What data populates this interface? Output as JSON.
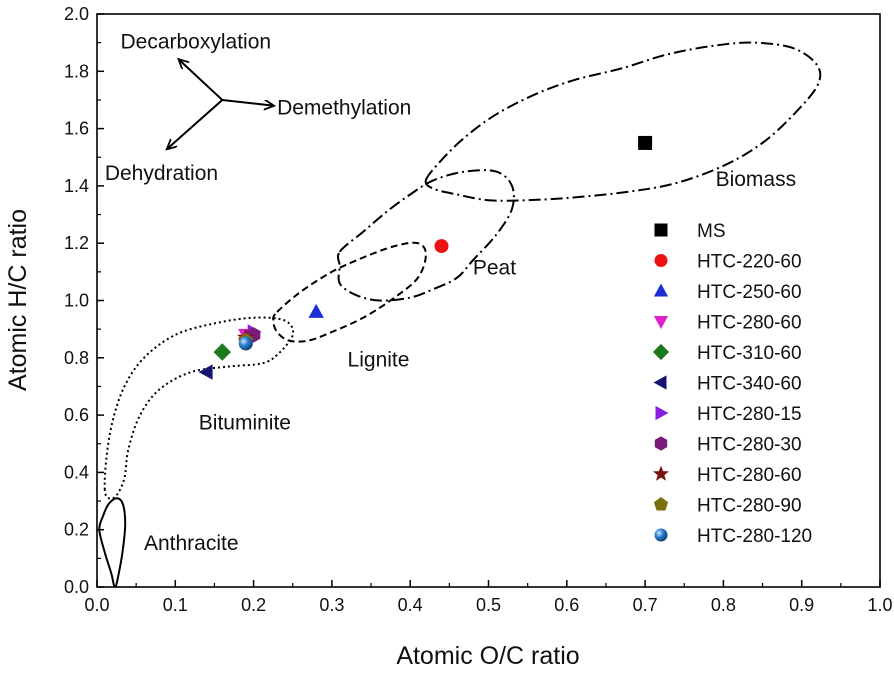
{
  "chart_data": {
    "type": "scatter",
    "xlabel": "Atomic O/C ratio",
    "ylabel": "Atomic H/C ratio",
    "xlim": [
      0.0,
      1.0
    ],
    "ylim": [
      0.0,
      2.0
    ],
    "xticks": [
      "0.0",
      "0.1",
      "0.2",
      "0.3",
      "0.4",
      "0.5",
      "0.6",
      "0.7",
      "0.8",
      "0.9",
      "1.0"
    ],
    "yticks": [
      "0.0",
      "0.2",
      "0.4",
      "0.6",
      "0.8",
      "1.0",
      "1.2",
      "1.4",
      "1.6",
      "1.8",
      "2.0"
    ],
    "grid": false,
    "legend_position": "right",
    "series": [
      {
        "name": "MS",
        "x": 0.7,
        "y": 1.55,
        "marker": "square",
        "color": "#000000"
      },
      {
        "name": "HTC-220-60",
        "x": 0.44,
        "y": 1.19,
        "marker": "circle",
        "color": "#ee1111"
      },
      {
        "name": "HTC-250-60",
        "x": 0.28,
        "y": 0.96,
        "marker": "triangle-up",
        "color": "#1a2fd6"
      },
      {
        "name": "HTC-280-60",
        "x": 0.19,
        "y": 0.88,
        "marker": "triangle-down",
        "color": "#e020c8"
      },
      {
        "name": "HTC-310-60",
        "x": 0.16,
        "y": 0.82,
        "marker": "diamond",
        "color": "#1e7a1e"
      },
      {
        "name": "HTC-340-60",
        "x": 0.14,
        "y": 0.75,
        "marker": "triangle-left",
        "color": "#141470"
      },
      {
        "name": "HTC-280-15",
        "x": 0.2,
        "y": 0.89,
        "marker": "triangle-right",
        "color": "#8a1ee0"
      },
      {
        "name": "HTC-280-30",
        "x": 0.2,
        "y": 0.88,
        "marker": "hexagon",
        "color": "#7a1a7a"
      },
      {
        "name": "HTC-280-60",
        "x": 0.19,
        "y": 0.87,
        "marker": "star",
        "color": "#7a1010"
      },
      {
        "name": "HTC-280-90",
        "x": 0.19,
        "y": 0.86,
        "marker": "pentagon",
        "color": "#7a7010"
      },
      {
        "name": "HTC-280-120",
        "x": 0.19,
        "y": 0.85,
        "marker": "sphere",
        "color": "#1e6fb8"
      }
    ],
    "regions": [
      {
        "name": "Biomass",
        "label_at": [
          0.79,
          1.4
        ],
        "style": "dash-dot",
        "outline": [
          [
            0.42,
            1.42
          ],
          [
            0.44,
            1.49
          ],
          [
            0.47,
            1.57
          ],
          [
            0.51,
            1.65
          ],
          [
            0.56,
            1.72
          ],
          [
            0.61,
            1.77
          ],
          [
            0.67,
            1.81
          ],
          [
            0.73,
            1.86
          ],
          [
            0.79,
            1.89
          ],
          [
            0.84,
            1.9
          ],
          [
            0.89,
            1.88
          ],
          [
            0.92,
            1.82
          ],
          [
            0.92,
            1.75
          ],
          [
            0.89,
            1.65
          ],
          [
            0.85,
            1.55
          ],
          [
            0.8,
            1.47
          ],
          [
            0.74,
            1.41
          ],
          [
            0.68,
            1.38
          ],
          [
            0.61,
            1.36
          ],
          [
            0.55,
            1.35
          ],
          [
            0.5,
            1.35
          ],
          [
            0.46,
            1.37
          ],
          [
            0.43,
            1.39
          ]
        ]
      },
      {
        "name": "Peat",
        "label_at": [
          0.48,
          1.09
        ],
        "style": "dash-dot",
        "outline": [
          [
            0.31,
            1.17
          ],
          [
            0.34,
            1.24
          ],
          [
            0.37,
            1.31
          ],
          [
            0.4,
            1.37
          ],
          [
            0.43,
            1.42
          ],
          [
            0.47,
            1.45
          ],
          [
            0.51,
            1.45
          ],
          [
            0.53,
            1.4
          ],
          [
            0.53,
            1.32
          ],
          [
            0.51,
            1.23
          ],
          [
            0.48,
            1.14
          ],
          [
            0.46,
            1.08
          ],
          [
            0.43,
            1.04
          ],
          [
            0.4,
            1.01
          ],
          [
            0.36,
            1.0
          ],
          [
            0.33,
            1.02
          ],
          [
            0.31,
            1.06
          ],
          [
            0.31,
            1.12
          ]
        ]
      },
      {
        "name": "Lignite",
        "label_at": [
          0.32,
          0.77
        ],
        "style": "dash",
        "outline": [
          [
            0.23,
            0.96
          ],
          [
            0.26,
            1.03
          ],
          [
            0.3,
            1.1
          ],
          [
            0.34,
            1.15
          ],
          [
            0.38,
            1.19
          ],
          [
            0.41,
            1.2
          ],
          [
            0.42,
            1.16
          ],
          [
            0.41,
            1.08
          ],
          [
            0.38,
            1.01
          ],
          [
            0.34,
            0.94
          ],
          [
            0.3,
            0.89
          ],
          [
            0.27,
            0.86
          ],
          [
            0.245,
            0.86
          ],
          [
            0.23,
            0.89
          ],
          [
            0.225,
            0.93
          ]
        ]
      },
      {
        "name": "Bituminite",
        "label_at": [
          0.13,
          0.55
        ],
        "style": "dot",
        "outline": [
          [
            0.01,
            0.34
          ],
          [
            0.012,
            0.45
          ],
          [
            0.02,
            0.58
          ],
          [
            0.035,
            0.7
          ],
          [
            0.06,
            0.8
          ],
          [
            0.1,
            0.88
          ],
          [
            0.15,
            0.92
          ],
          [
            0.2,
            0.94
          ],
          [
            0.24,
            0.93
          ],
          [
            0.25,
            0.88
          ],
          [
            0.23,
            0.81
          ],
          [
            0.21,
            0.78
          ],
          [
            0.17,
            0.77
          ],
          [
            0.12,
            0.75
          ],
          [
            0.08,
            0.69
          ],
          [
            0.055,
            0.6
          ],
          [
            0.04,
            0.48
          ],
          [
            0.035,
            0.38
          ],
          [
            0.025,
            0.32
          ],
          [
            0.015,
            0.31
          ]
        ]
      },
      {
        "name": "Anthracite",
        "label_at": [
          0.06,
          0.13
        ],
        "style": "solid",
        "outline": [
          [
            0.003,
            0.2
          ],
          [
            0.008,
            0.25
          ],
          [
            0.015,
            0.29
          ],
          [
            0.025,
            0.31
          ],
          [
            0.033,
            0.29
          ],
          [
            0.036,
            0.22
          ],
          [
            0.033,
            0.13
          ],
          [
            0.028,
            0.05
          ],
          [
            0.023,
            0.0
          ],
          [
            0.018,
            0.05
          ],
          [
            0.01,
            0.12
          ]
        ]
      }
    ],
    "annotations": [
      {
        "text": "Decarboxylation",
        "label_at": [
          0.03,
          1.88
        ],
        "arrow_to": [
          0.105,
          1.84
        ]
      },
      {
        "text": "Demethylation",
        "label_at": [
          0.23,
          1.65
        ],
        "arrow_to": [
          0.225,
          1.68
        ]
      },
      {
        "text": "Dehydration",
        "label_at": [
          0.01,
          1.42
        ],
        "arrow_to": [
          0.09,
          1.53
        ]
      }
    ],
    "vector_origin": [
      0.16,
      1.7
    ]
  }
}
